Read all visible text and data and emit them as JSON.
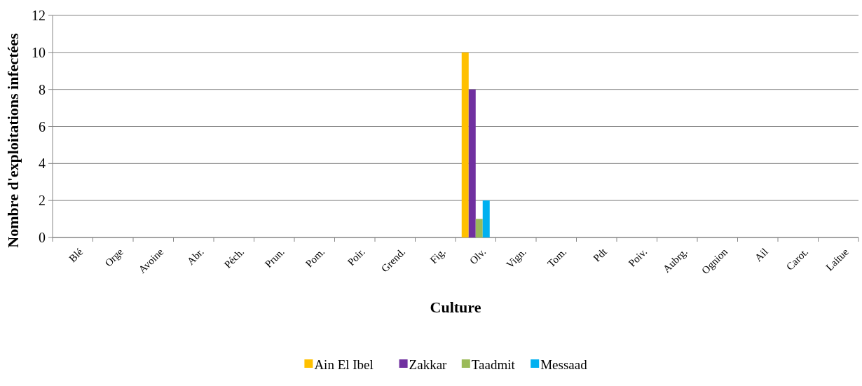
{
  "chart_data": {
    "type": "bar",
    "xlabel": "Culture",
    "ylabel": "Nombre d'exploitations infectées",
    "categories": [
      "Blé",
      "Orge",
      "Avoine",
      "Abr.",
      "Péch.",
      "Prun.",
      "Pom.",
      "Poir.",
      "Grend.",
      "Fig.",
      "Olv.",
      "Vign.",
      "Tom.",
      "Pdt",
      "Poiv.",
      "Aubrg.",
      "Ognion",
      "Ail",
      "Carot.",
      "Laitue"
    ],
    "series": [
      {
        "name": "Ain El Ibel",
        "color": "#ffc000",
        "values": [
          0,
          0,
          0,
          0,
          0,
          0,
          0,
          0,
          0,
          0,
          10,
          0,
          0,
          0,
          0,
          0,
          0,
          0,
          0,
          0
        ]
      },
      {
        "name": "Zakkar",
        "color": "#7030a0",
        "values": [
          0,
          0,
          0,
          0,
          0,
          0,
          0,
          0,
          0,
          0,
          8,
          0,
          0,
          0,
          0,
          0,
          0,
          0,
          0,
          0
        ]
      },
      {
        "name": "Taadmit",
        "color": "#9bbb59",
        "values": [
          0,
          0,
          0,
          0,
          0,
          0,
          0,
          0,
          0,
          0,
          1,
          0,
          0,
          0,
          0,
          0,
          0,
          0,
          0,
          0
        ]
      },
      {
        "name": "Messaad",
        "color": "#00b0f0",
        "values": [
          0,
          0,
          0,
          0,
          0,
          0,
          0,
          0,
          0,
          0,
          2,
          0,
          0,
          0,
          0,
          0,
          0,
          0,
          0,
          0
        ]
      }
    ],
    "ylim": [
      0,
      12
    ],
    "yticks": [
      0,
      2,
      4,
      6,
      8,
      10,
      12
    ],
    "grid": "y",
    "legend": "bottom"
  }
}
